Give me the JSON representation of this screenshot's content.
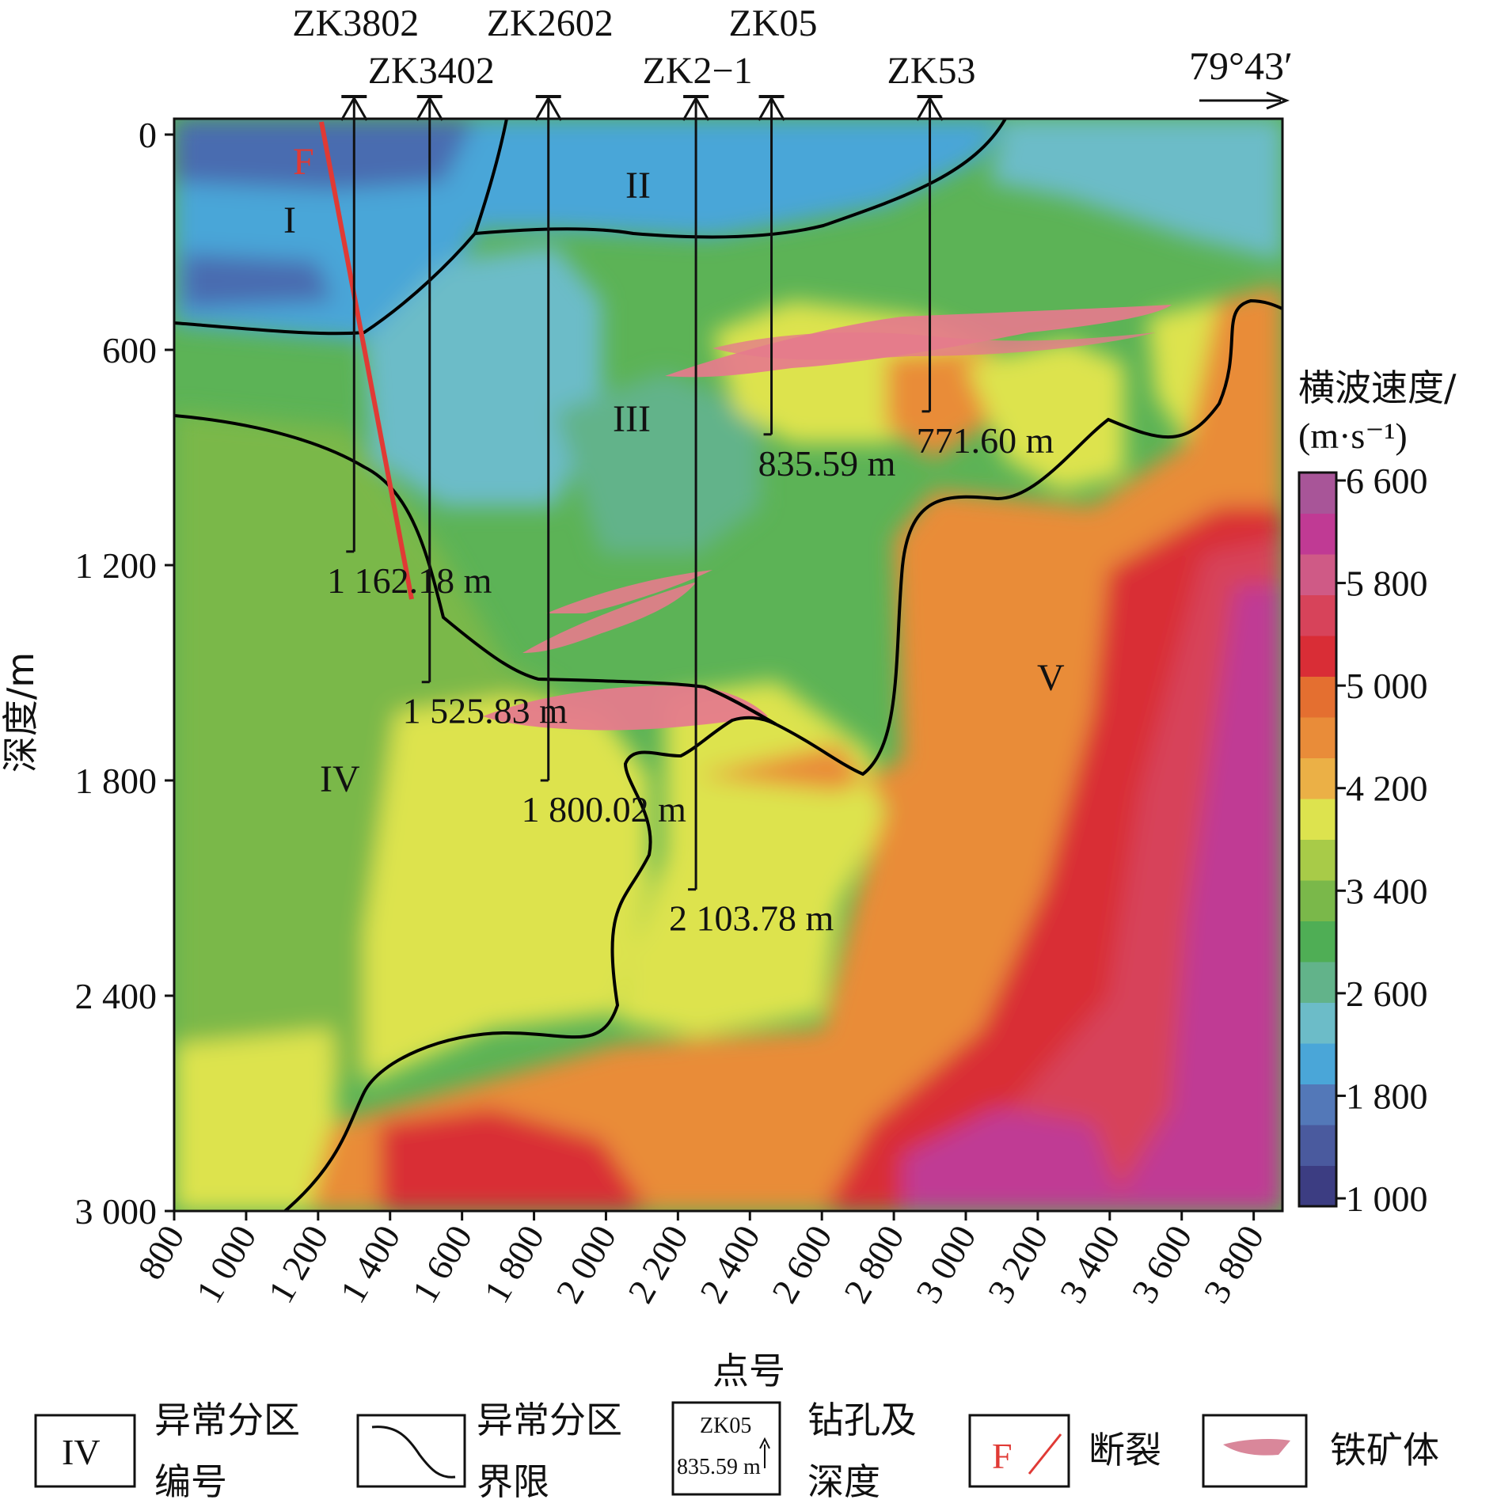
{
  "chart_data": {
    "type": "heatmap",
    "xlabel": "点号",
    "ylabel": "深度/m",
    "x_ticks": [
      "800",
      "1 000",
      "1 200",
      "1 400",
      "1 600",
      "1 800",
      "2 000",
      "2 200",
      "2 400",
      "2 600",
      "2 800",
      "3 000",
      "3 200",
      "3 400",
      "3 600",
      "3 800"
    ],
    "x_tick_values": [
      800,
      1000,
      1200,
      1400,
      1600,
      1800,
      2000,
      2200,
      2400,
      2600,
      2800,
      3000,
      3200,
      3400,
      3600,
      3800
    ],
    "y_ticks": [
      "0",
      "600",
      "1 200",
      "1 800",
      "2 400",
      "3 000"
    ],
    "y_tick_values": [
      0,
      600,
      1200,
      1800,
      2400,
      3000
    ],
    "xlim": [
      800,
      3880
    ],
    "ylim": [
      0,
      3000
    ],
    "direction_label": "79°43′",
    "colorbar": {
      "title_line1": "横波速度/",
      "title_line2": "(m·s⁻¹)",
      "ticks": [
        "6 600",
        "5 800",
        "5 000",
        "4 200",
        "3 400",
        "2 600",
        "1 800",
        "1 000"
      ],
      "tick_values": [
        6600,
        5800,
        5000,
        4200,
        3400,
        2600,
        1800,
        1000
      ],
      "range": [
        1000,
        6600
      ],
      "colors": [
        "#3c3d82",
        "#4a5a9e",
        "#5378b8",
        "#4aa6d8",
        "#6cbcc8",
        "#62b38a",
        "#4fae55",
        "#7ab84a",
        "#a8cb48",
        "#dde34e",
        "#ebb046",
        "#e98c39",
        "#e46f30",
        "#d92d36",
        "#d7435a",
        "#cf5a86",
        "#c03a94",
        "#a85598"
      ]
    },
    "zones": [
      {
        "label": "I"
      },
      {
        "label": "II"
      },
      {
        "label": "III"
      },
      {
        "label": "IV"
      },
      {
        "label": "V"
      }
    ],
    "boreholes": [
      {
        "name": "ZK3802",
        "x": 1300,
        "depth_label": "1 162.18 m",
        "depth": 1162.18
      },
      {
        "name": "ZK3402",
        "x": 1510,
        "depth_label": "1 525.83 m",
        "depth": 1525.83
      },
      {
        "name": "ZK2602",
        "x": 1840,
        "depth_label": "1 800.02 m",
        "depth": 1800.02
      },
      {
        "name": "ZK2−1",
        "x": 2250,
        "depth_label": "2 103.78 m",
        "depth": 2103.78
      },
      {
        "name": "ZK05",
        "x": 2460,
        "depth_label": "835.59 m",
        "depth": 835.59
      },
      {
        "name": "ZK53",
        "x": 2900,
        "depth_label": "771.60 m",
        "depth": 771.6
      }
    ],
    "fault": {
      "label": "F",
      "top": [
        1190,
        0
      ],
      "bottom": [
        1440,
        1280
      ]
    },
    "ore_bodies": [
      {
        "x_range": [
          2130,
          3580
        ],
        "depth_range": [
          480,
          720
        ]
      },
      {
        "x_range": [
          1830,
          2300
        ],
        "depth_range": [
          1130,
          1440
        ]
      },
      {
        "x_range": [
          1730,
          2450
        ],
        "depth_range": [
          1530,
          1680
        ]
      }
    ]
  },
  "legend": {
    "zone_symbol": "IV",
    "zone_label_line1": "异常分区",
    "zone_label_line2": "编号",
    "boundary_label_line1": "异常分区",
    "boundary_label_line2": "界限",
    "borehole_example_name": "ZK05",
    "borehole_example_depth": "835.59 m",
    "borehole_label_line1": "钻孔及",
    "borehole_label_line2": "深度",
    "fault_symbol": "F",
    "fault_label": "断裂",
    "ore_label": "铁矿体"
  },
  "colors": {
    "fault": "#e03a35",
    "ore": "#e57b8c",
    "boundary": "#000000"
  }
}
